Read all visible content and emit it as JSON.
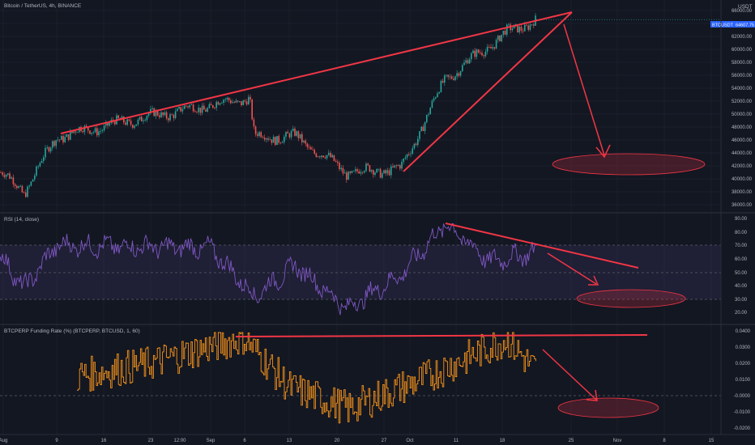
{
  "colors": {
    "bg": "#131722",
    "grid": "#1f2330",
    "up": "#26a69a",
    "down": "#ef5350",
    "rsi": "#7e57c2",
    "rsi_band": "#7e57c2",
    "funding": "#f7931a",
    "drawing": "#f23645",
    "text": "#b2b5be",
    "price_badge": "#2962ff"
  },
  "header": {
    "title": "Bitcoin / TetherUS, 4h, BINANCE",
    "currency": "USDT"
  },
  "price_axis": {
    "ticks": [
      "66000.00",
      "64000.00",
      "62000.00",
      "60000.00",
      "58000.00",
      "56000.00",
      "54000.00",
      "52000.00",
      "50000.00",
      "48000.00",
      "46000.00",
      "44000.00",
      "42000.00",
      "40000.00",
      "38000.00",
      "36000.00"
    ],
    "badge_labels": [
      "BTCUSDT",
      "64607.75"
    ]
  },
  "rsi_panel": {
    "title": "RSI (14, close)",
    "ticks": [
      "90.00",
      "80.00",
      "70.00",
      "60.00",
      "50.00",
      "40.00",
      "30.00",
      "20.00"
    ]
  },
  "funding_panel": {
    "title": "BTCPERP Funding Rate (%) (BTCPERP, BTCUSD, 1, 60)",
    "ticks": [
      "0.0400",
      "0.0300",
      "0.0200",
      "0.0100",
      "-0.0000",
      "-0.0100",
      "-0.0200"
    ]
  },
  "time_axis": {
    "labels": [
      "Aug",
      "9",
      "16",
      "23",
      "12:00",
      "Sep",
      "6",
      "13",
      "20",
      "27",
      "Oct",
      "11",
      "18",
      "25",
      "Nov",
      "8",
      "15"
    ]
  },
  "chart_data": [
    {
      "type": "candlestick",
      "title": "Bitcoin / TetherUS, 4h, BINANCE",
      "ylabel": "USDT",
      "ylim": [
        35000,
        66500
      ],
      "grid": true,
      "key_points": [
        {
          "x": "Aug",
          "y": 41000
        },
        {
          "x": "Aug 5",
          "y": 38000
        },
        {
          "x": "Aug 12",
          "y": 46500
        },
        {
          "x": "Aug 23",
          "y": 49500
        },
        {
          "x": "Sep 6",
          "y": 52500
        },
        {
          "x": "Sep 7",
          "y": 46500
        },
        {
          "x": "Sep 14",
          "y": 46500
        },
        {
          "x": "Sep 21",
          "y": 41000
        },
        {
          "x": "Sep 29",
          "y": 41500
        },
        {
          "x": "Oct 6",
          "y": 55500
        },
        {
          "x": "Oct 15",
          "y": 62500
        },
        {
          "x": "Oct 20",
          "y": 64600
        }
      ],
      "last_price": 64607.75
    },
    {
      "type": "line",
      "title": "RSI (14, close)",
      "ylim": [
        18,
        92
      ],
      "bands": [
        30,
        50,
        70
      ],
      "key_points": [
        {
          "x": "Aug",
          "y": 62
        },
        {
          "x": "Aug 5",
          "y": 38
        },
        {
          "x": "Aug 9",
          "y": 70
        },
        {
          "x": "Aug 30",
          "y": 68
        },
        {
          "x": "Sep 7",
          "y": 32
        },
        {
          "x": "Sep 14",
          "y": 55
        },
        {
          "x": "Sep 21",
          "y": 23
        },
        {
          "x": "Sep 29",
          "y": 48
        },
        {
          "x": "Oct 6",
          "y": 86
        },
        {
          "x": "Oct 12",
          "y": 58
        },
        {
          "x": "Oct 20",
          "y": 65
        }
      ]
    },
    {
      "type": "bar",
      "title": "BTCPERP Funding Rate (%) (BTCPERP, BTCUSD, 1, 60)",
      "ylim": [
        -0.022,
        0.042
      ],
      "key_points": [
        {
          "x": "Aug 6",
          "y": 0.012
        },
        {
          "x": "Aug 23",
          "y": 0.02
        },
        {
          "x": "Sep 4",
          "y": 0.036
        },
        {
          "x": "Sep 13",
          "y": 0.005
        },
        {
          "x": "Sep 22",
          "y": -0.008
        },
        {
          "x": "Oct 4",
          "y": 0.01
        },
        {
          "x": "Oct 16",
          "y": 0.035
        },
        {
          "x": "Oct 20",
          "y": 0.015
        }
      ]
    }
  ]
}
